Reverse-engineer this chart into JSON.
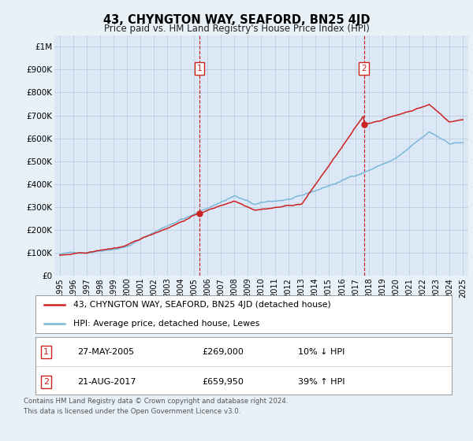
{
  "title": "43, CHYNGTON WAY, SEAFORD, BN25 4JD",
  "subtitle": "Price paid vs. HM Land Registry's House Price Index (HPI)",
  "background_color": "#e8f0f8",
  "plot_bg_color": "#dce8f5",
  "transaction1": {
    "date": "27-MAY-2005",
    "price": 269000,
    "pct": "10%",
    "dir": "↓",
    "year": 2005.41
  },
  "transaction2": {
    "date": "21-AUG-2017",
    "price": 659950,
    "pct": "39%",
    "dir": "↑",
    "year": 2017.63
  },
  "legend_line1": "43, CHYNGTON WAY, SEAFORD, BN25 4JD (detached house)",
  "legend_line2": "HPI: Average price, detached house, Lewes",
  "footnote1": "Contains HM Land Registry data © Crown copyright and database right 2024.",
  "footnote2": "This data is licensed under the Open Government Licence v3.0.",
  "ylim": [
    0,
    1050000
  ],
  "yticks": [
    0,
    100000,
    200000,
    300000,
    400000,
    500000,
    600000,
    700000,
    800000,
    900000,
    1000000
  ],
  "ytick_labels": [
    "£0",
    "£100K",
    "£200K",
    "£300K",
    "£400K",
    "£500K",
    "£600K",
    "£700K",
    "£800K",
    "£900K",
    "£1M"
  ],
  "hpi_color": "#7ab8d9",
  "price_color": "#cc2222",
  "xlim_left": 1994.6,
  "xlim_right": 2025.4,
  "xtick_start": 1995,
  "xtick_end": 2025
}
